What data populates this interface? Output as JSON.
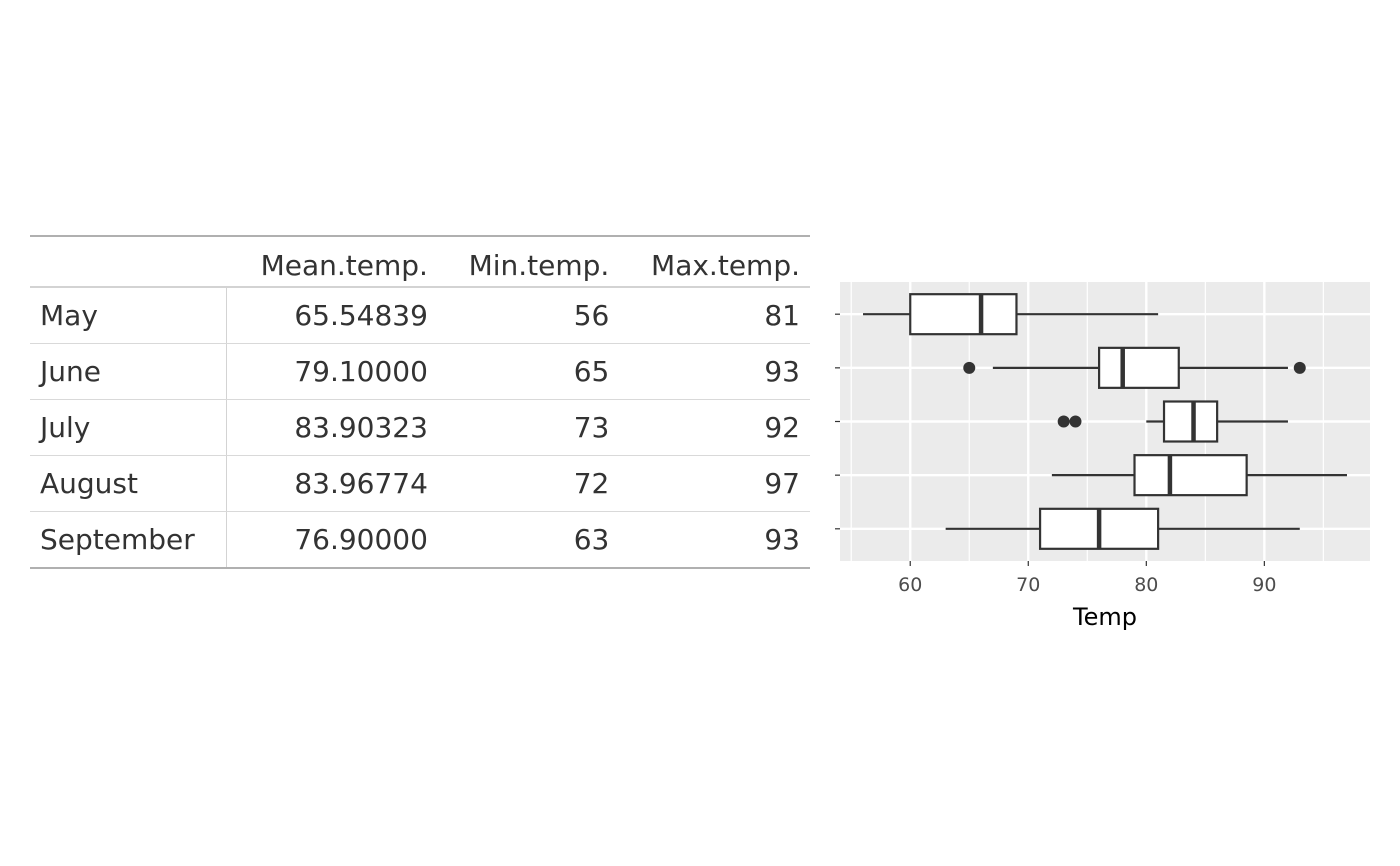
{
  "table": {
    "headers": [
      "",
      "Mean.temp.",
      "Min.temp.",
      "Max.temp."
    ],
    "rows": [
      [
        "May",
        "65.54839",
        "56",
        "81"
      ],
      [
        "June",
        "79.10000",
        "65",
        "93"
      ],
      [
        "July",
        "83.90323",
        "73",
        "92"
      ],
      [
        "August",
        "83.96774",
        "72",
        "97"
      ],
      [
        "September",
        "76.90000",
        "63",
        "93"
      ]
    ]
  },
  "chart_data": {
    "type": "boxplot",
    "orientation": "horizontal",
    "xlabel": "Temp",
    "xlim": [
      54.05,
      98.95
    ],
    "xticks": [
      60,
      70,
      80,
      90
    ],
    "tick_labels": [
      "60",
      "70",
      "80",
      "90"
    ],
    "grid": true,
    "background": "#ebebeb",
    "series": [
      {
        "category": "May",
        "whisker_low": 56,
        "q1": 60,
        "median": 66,
        "q3": 69,
        "whisker_high": 81,
        "outliers": []
      },
      {
        "category": "June",
        "whisker_low": 67,
        "q1": 76,
        "median": 78,
        "q3": 82.75,
        "whisker_high": 92,
        "outliers": [
          65,
          93
        ]
      },
      {
        "category": "July",
        "whisker_low": 80,
        "q1": 81.5,
        "median": 84,
        "q3": 86,
        "whisker_high": 92,
        "outliers": [
          73,
          74
        ]
      },
      {
        "category": "August",
        "whisker_low": 72,
        "q1": 79,
        "median": 82,
        "q3": 88.5,
        "whisker_high": 97,
        "outliers": []
      },
      {
        "category": "September",
        "whisker_low": 63,
        "q1": 71,
        "median": 76,
        "q3": 81,
        "whisker_high": 93,
        "outliers": []
      }
    ]
  }
}
